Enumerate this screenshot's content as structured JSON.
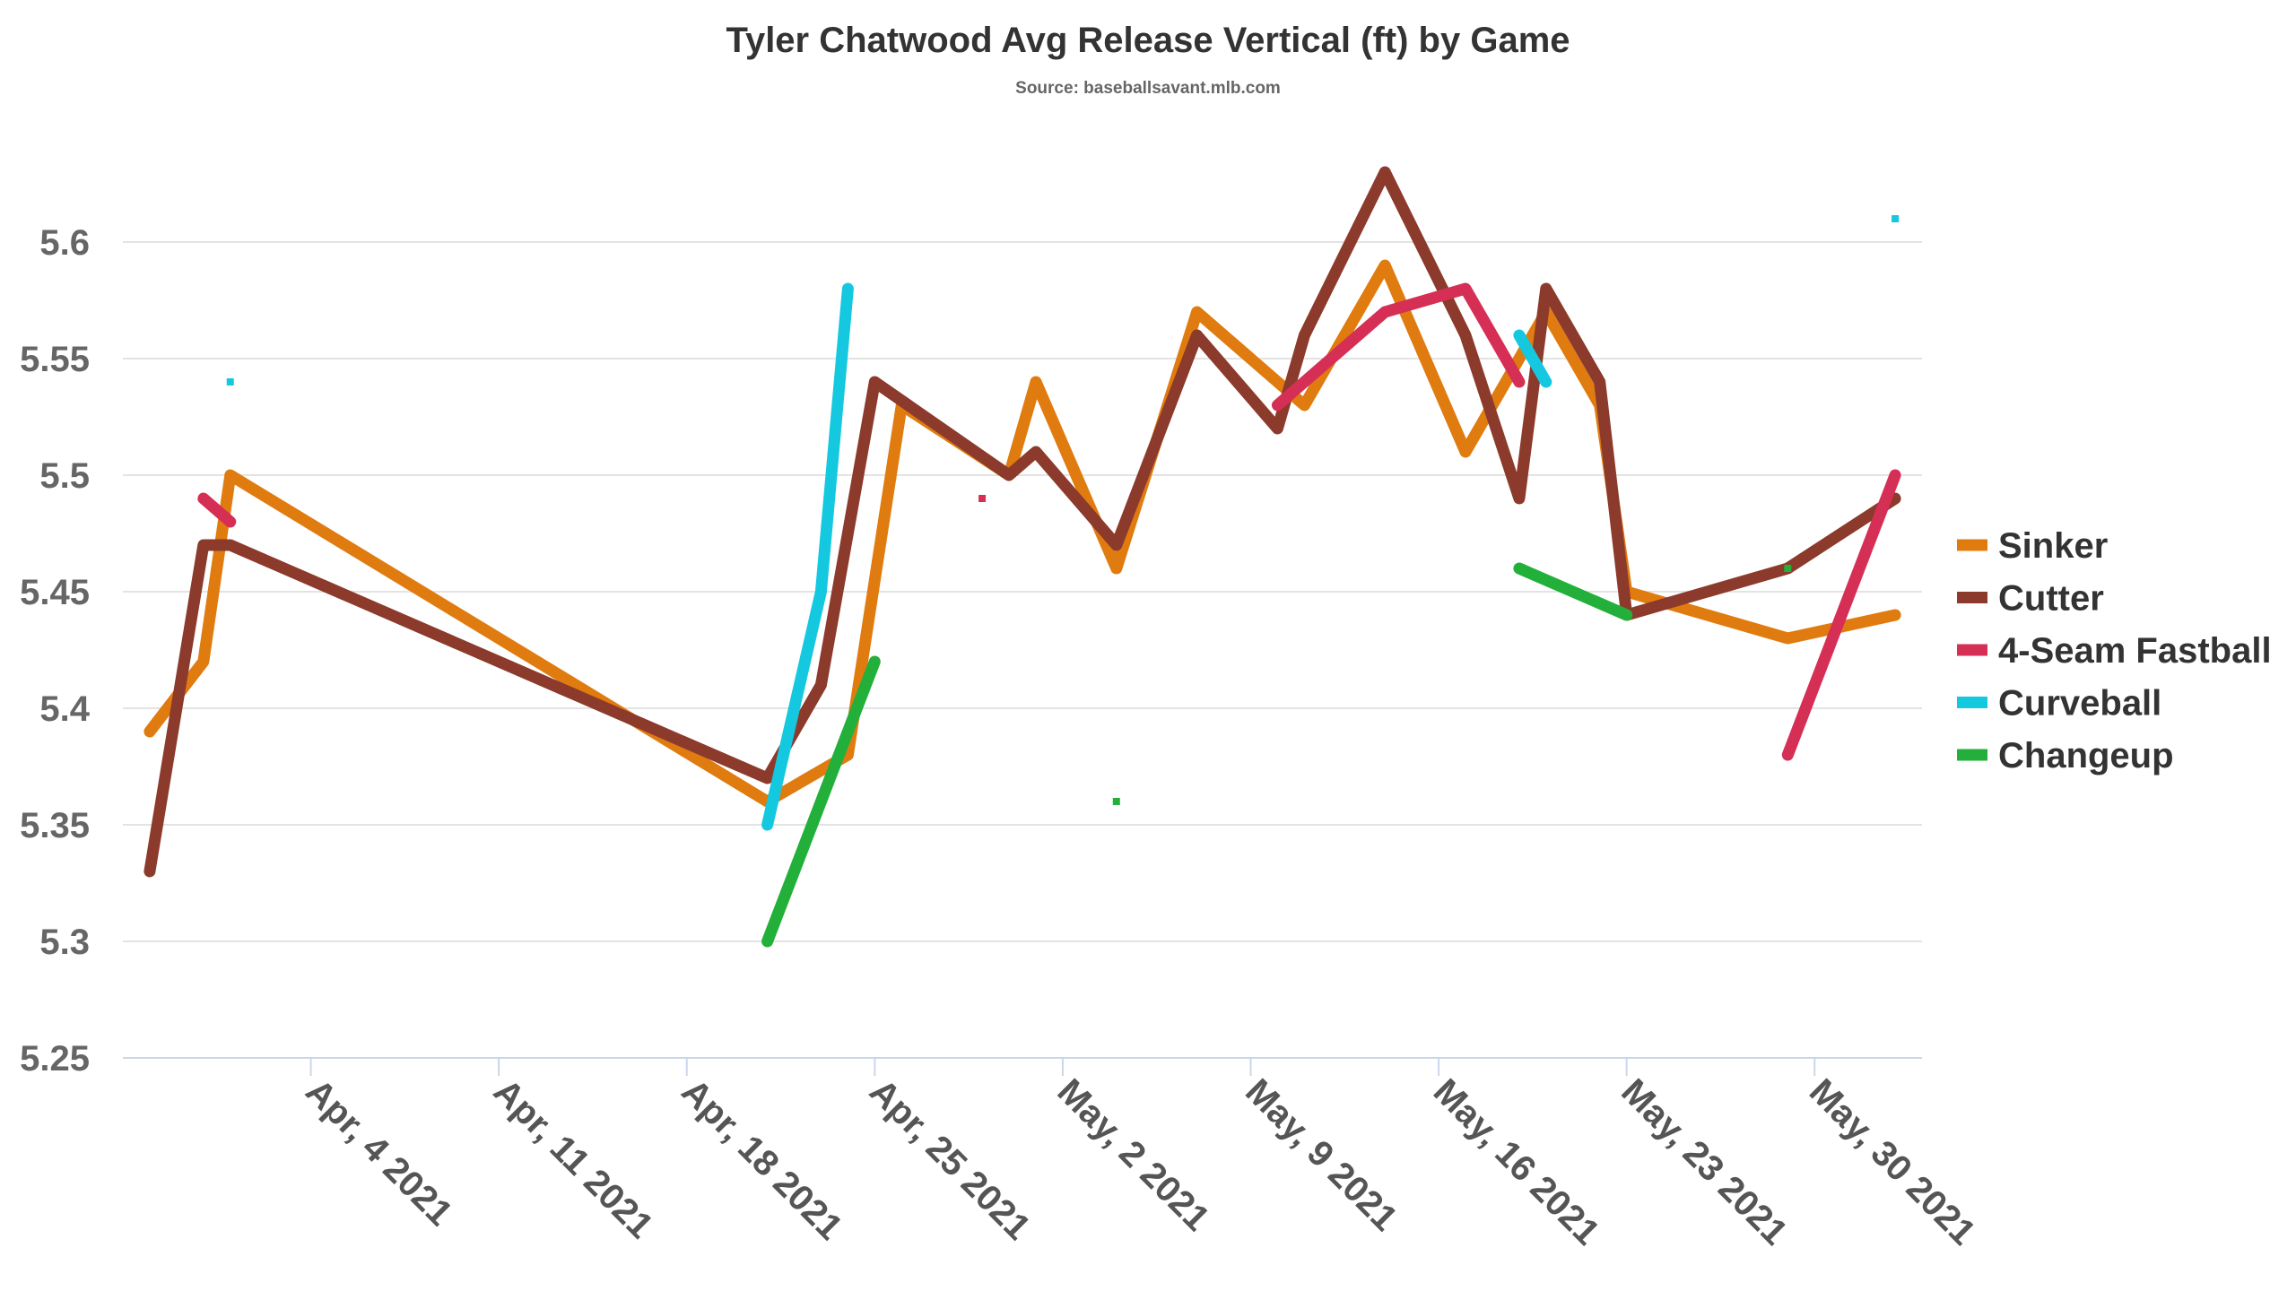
{
  "chart_data": {
    "type": "line",
    "title": "Tyler Chatwood Avg Release Vertical (ft) by Game",
    "subtitle": "Source: baseballsavant.mlb.com",
    "xlabel": "",
    "ylabel": "",
    "x_range": [
      "2021-03-28",
      "2021-06-03"
    ],
    "ylim": [
      5.25,
      5.65
    ],
    "y_ticks": [
      5.25,
      5.3,
      5.35,
      5.4,
      5.45,
      5.5,
      5.55,
      5.6
    ],
    "y_tick_labels": [
      "5.25",
      "5.3",
      "5.35",
      "5.4",
      "5.45",
      "5.5",
      "5.55",
      "5.6"
    ],
    "x_ticks": [
      {
        "date": "2021-04-04",
        "label": "Apr, 4 2021"
      },
      {
        "date": "2021-04-11",
        "label": "Apr, 11 2021"
      },
      {
        "date": "2021-04-18",
        "label": "Apr, 18 2021"
      },
      {
        "date": "2021-04-25",
        "label": "Apr, 25 2021"
      },
      {
        "date": "2021-05-02",
        "label": "May, 2 2021"
      },
      {
        "date": "2021-05-09",
        "label": "May, 9 2021"
      },
      {
        "date": "2021-05-16",
        "label": "May, 16 2021"
      },
      {
        "date": "2021-05-23",
        "label": "May, 23 2021"
      },
      {
        "date": "2021-05-30",
        "label": "May, 30 2021"
      }
    ],
    "grid": true,
    "legend_position": "right",
    "series": [
      {
        "name": "Sinker",
        "color": "#e07b10",
        "points": [
          {
            "x": "2021-03-29",
            "y": 5.39
          },
          {
            "x": "2021-03-31",
            "y": 5.42
          },
          {
            "x": "2021-04-01",
            "y": 5.5
          },
          {
            "x": "2021-04-21",
            "y": 5.36
          },
          {
            "x": "2021-04-24",
            "y": 5.38
          },
          {
            "x": "2021-04-26",
            "y": 5.53
          },
          {
            "x": "2021-04-30",
            "y": 5.5
          },
          {
            "x": "2021-05-01",
            "y": 5.54
          },
          {
            "x": "2021-05-04",
            "y": 5.46
          },
          {
            "x": "2021-05-07",
            "y": 5.57
          },
          {
            "x": "2021-05-11",
            "y": 5.53
          },
          {
            "x": "2021-05-14",
            "y": 5.59
          },
          {
            "x": "2021-05-17",
            "y": 5.51
          },
          {
            "x": "2021-05-20",
            "y": 5.57
          },
          {
            "x": "2021-05-22",
            "y": 5.53
          },
          {
            "x": "2021-05-23",
            "y": 5.45
          },
          {
            "x": "2021-05-29",
            "y": 5.43
          },
          {
            "x": "2021-06-02",
            "y": 5.44
          }
        ]
      },
      {
        "name": "Cutter",
        "color": "#8b3a2b",
        "points": [
          {
            "x": "2021-03-29",
            "y": 5.33
          },
          {
            "x": "2021-03-31",
            "y": 5.47
          },
          {
            "x": "2021-04-01",
            "y": 5.47
          },
          {
            "x": "2021-04-21",
            "y": 5.37
          },
          {
            "x": "2021-04-23",
            "y": 5.41
          },
          {
            "x": "2021-04-25",
            "y": 5.54
          },
          {
            "x": "2021-04-30",
            "y": 5.5
          },
          {
            "x": "2021-05-01",
            "y": 5.51
          },
          {
            "x": "2021-05-04",
            "y": 5.47
          },
          {
            "x": "2021-05-07",
            "y": 5.56
          },
          {
            "x": "2021-05-10",
            "y": 5.52
          },
          {
            "x": "2021-05-11",
            "y": 5.56
          },
          {
            "x": "2021-05-14",
            "y": 5.63
          },
          {
            "x": "2021-05-17",
            "y": 5.56
          },
          {
            "x": "2021-05-19",
            "y": 5.49
          },
          {
            "x": "2021-05-20",
            "y": 5.58
          },
          {
            "x": "2021-05-22",
            "y": 5.54
          },
          {
            "x": "2021-05-23",
            "y": 5.44
          },
          {
            "x": "2021-05-29",
            "y": 5.46
          },
          {
            "x": "2021-06-02",
            "y": 5.49
          }
        ]
      },
      {
        "name": "4-Seam Fastball",
        "color": "#d62f55",
        "points": [
          {
            "x": "2021-03-31",
            "y": 5.49
          },
          {
            "x": "2021-04-01",
            "y": 5.48
          },
          {
            "x": "2021-04-29",
            "y": 5.49
          },
          {
            "x": "2021-05-10",
            "y": 5.53
          },
          {
            "x": "2021-05-14",
            "y": 5.57
          },
          {
            "x": "2021-05-17",
            "y": 5.58
          },
          {
            "x": "2021-05-19",
            "y": 5.54
          },
          {
            "x": "2021-05-29",
            "y": 5.38
          },
          {
            "x": "2021-06-02",
            "y": 5.5
          }
        ]
      },
      {
        "name": "Curveball",
        "color": "#14c8e0",
        "points": [
          {
            "x": "2021-04-01",
            "y": 5.54
          },
          {
            "x": "2021-04-21",
            "y": 5.35
          },
          {
            "x": "2021-04-23",
            "y": 5.45
          },
          {
            "x": "2021-04-24",
            "y": 5.58
          },
          {
            "x": "2021-05-19",
            "y": 5.56
          },
          {
            "x": "2021-05-20",
            "y": 5.54
          },
          {
            "x": "2021-06-02",
            "y": 5.61
          }
        ]
      },
      {
        "name": "Changeup",
        "color": "#22b03a",
        "points": [
          {
            "x": "2021-04-21",
            "y": 5.3
          },
          {
            "x": "2021-04-25",
            "y": 5.42
          },
          {
            "x": "2021-05-04",
            "y": 5.36
          },
          {
            "x": "2021-05-19",
            "y": 5.46
          },
          {
            "x": "2021-05-23",
            "y": 5.44
          },
          {
            "x": "2021-05-29",
            "y": 5.46
          }
        ]
      }
    ]
  }
}
